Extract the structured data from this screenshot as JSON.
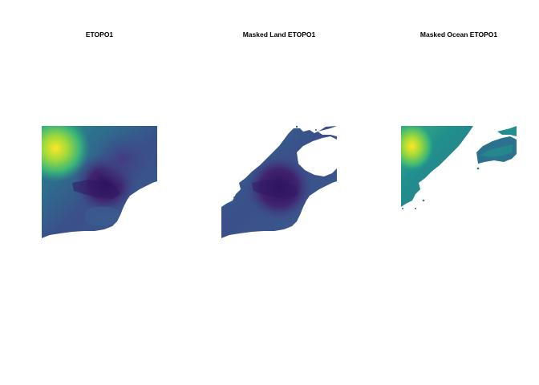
{
  "panels": [
    {
      "title": "ETOPO1",
      "variant": "full"
    },
    {
      "title": "Masked Land ETOPO1",
      "variant": "land_masked"
    },
    {
      "title": "Masked Ocean ETOPO1",
      "variant": "ocean_masked"
    }
  ],
  "colors": {
    "background": "#ffffff",
    "palette": "viridis",
    "deep_basin": "#3b1f6e",
    "ocean": "#3f4a8a",
    "shelf": "#33638d",
    "coast": "#21908d",
    "lowland": "#2a9e7f",
    "upland": "#5ec962",
    "peaks": "#fde725"
  }
}
